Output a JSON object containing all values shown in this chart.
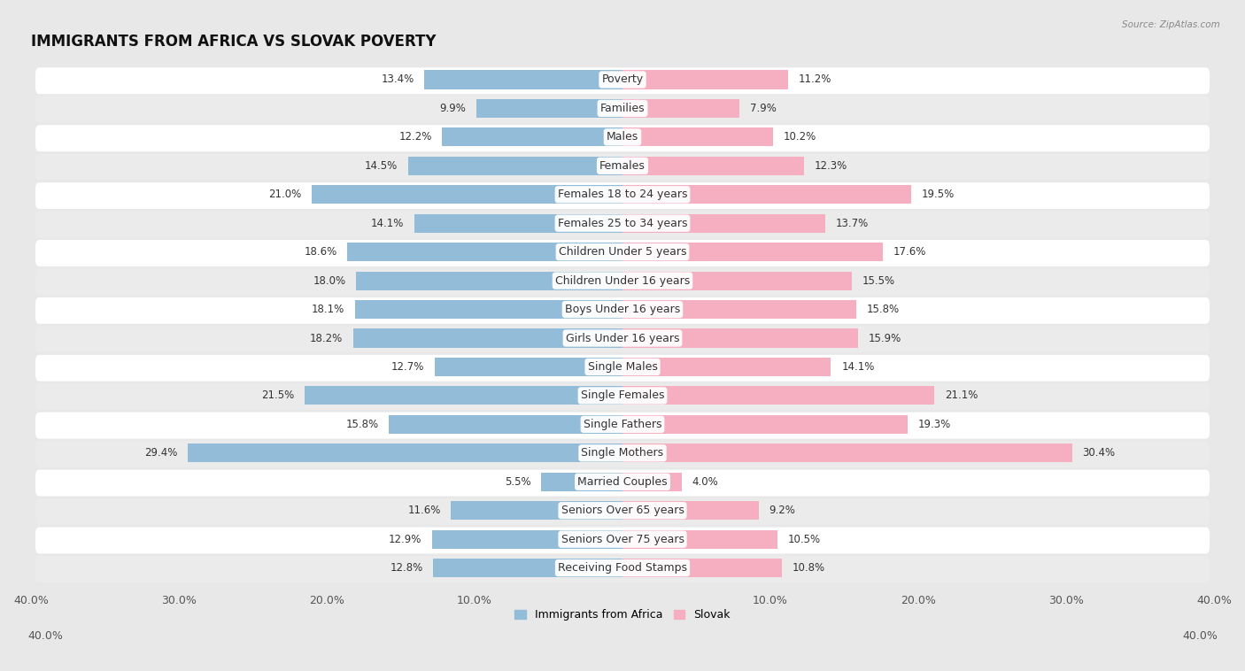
{
  "title": "IMMIGRANTS FROM AFRICA VS SLOVAK POVERTY",
  "source": "Source: ZipAtlas.com",
  "categories": [
    "Poverty",
    "Families",
    "Males",
    "Females",
    "Females 18 to 24 years",
    "Females 25 to 34 years",
    "Children Under 5 years",
    "Children Under 16 years",
    "Boys Under 16 years",
    "Girls Under 16 years",
    "Single Males",
    "Single Females",
    "Single Fathers",
    "Single Mothers",
    "Married Couples",
    "Seniors Over 65 years",
    "Seniors Over 75 years",
    "Receiving Food Stamps"
  ],
  "left_values": [
    13.4,
    9.9,
    12.2,
    14.5,
    21.0,
    14.1,
    18.6,
    18.0,
    18.1,
    18.2,
    12.7,
    21.5,
    15.8,
    29.4,
    5.5,
    11.6,
    12.9,
    12.8
  ],
  "right_values": [
    11.2,
    7.9,
    10.2,
    12.3,
    19.5,
    13.7,
    17.6,
    15.5,
    15.8,
    15.9,
    14.1,
    21.1,
    19.3,
    30.4,
    4.0,
    9.2,
    10.5,
    10.8
  ],
  "left_color": "#92bcd8",
  "right_color": "#f5afc0",
  "xlim": 40.0,
  "bg_color": "#e8e8e8",
  "row_color_even": "#ffffff",
  "row_color_odd": "#ebebeb",
  "legend_left": "Immigrants from Africa",
  "legend_right": "Slovak",
  "title_fontsize": 12,
  "label_fontsize": 9,
  "value_fontsize": 8.5,
  "axis_fontsize": 9
}
